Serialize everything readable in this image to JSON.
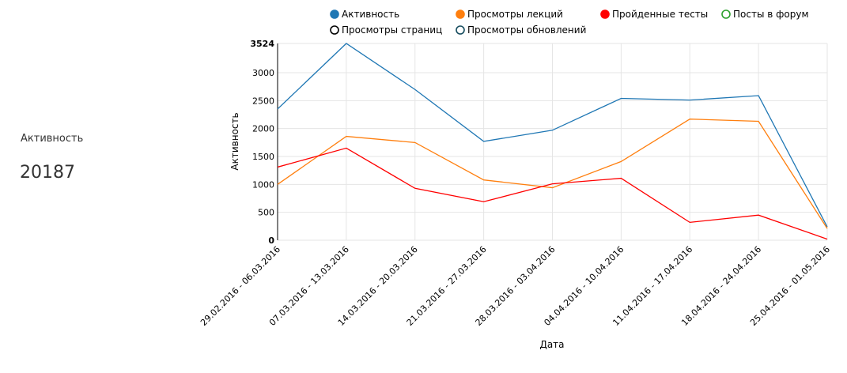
{
  "panel": {
    "label": "Активность",
    "value": "20187"
  },
  "chart_data": {
    "type": "line",
    "xlabel": "Дата",
    "ylabel": "Активность",
    "categories": [
      "29.02.2016 - 06.03.2016",
      "07.03.2016 - 13.03.2016",
      "14.03.2016 - 20.03.2016",
      "21.03.2016 - 27.03.2016",
      "28.03.2016 - 03.04.2016",
      "04.04.2016 - 10.04.2016",
      "11.04.2016 - 17.04.2016",
      "18.04.2016 - 24.04.2016",
      "25.04.2016 - 01.05.2016"
    ],
    "series": [
      {
        "name": "Активность",
        "color": "#1f77b4",
        "visible": true,
        "values": [
          2350,
          3524,
          2700,
          1770,
          1970,
          2540,
          2510,
          2590,
          240
        ]
      },
      {
        "name": "Просмотры лекций",
        "color": "#ff7f0e",
        "visible": true,
        "values": [
          1000,
          1860,
          1750,
          1080,
          940,
          1410,
          2170,
          2130,
          210
        ]
      },
      {
        "name": "Пройденные тесты",
        "color": "#ff0000",
        "visible": true,
        "values": [
          1310,
          1650,
          930,
          690,
          1010,
          1110,
          320,
          450,
          20
        ]
      },
      {
        "name": "Посты в форум",
        "color": "#2ca02c",
        "visible": false
      },
      {
        "name": "Просмотры страниц",
        "color": "#000000",
        "visible": false
      },
      {
        "name": "Просмотры обновлений",
        "color": "#164c5e",
        "visible": false
      }
    ],
    "ylim": [
      0,
      3524
    ],
    "yticks": [
      0,
      500,
      1000,
      1500,
      2000,
      2500,
      3000,
      3524
    ],
    "grid": true
  }
}
